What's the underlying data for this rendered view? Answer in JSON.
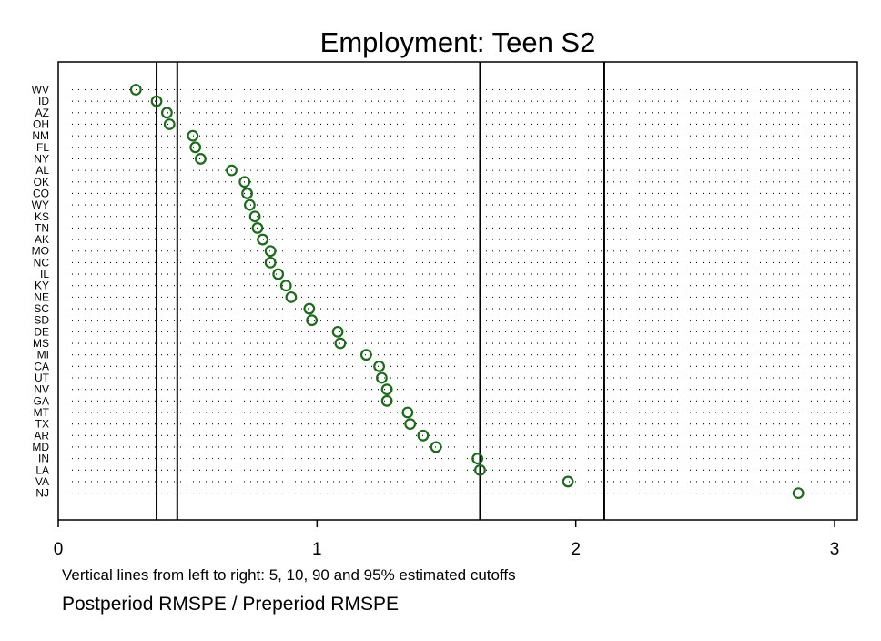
{
  "chart_data": {
    "type": "scatter",
    "title": "Employment: Teen S2",
    "xlabel": "Postperiod RMSPE / Preperiod RMSPE",
    "note": "Vertical lines from left to right: 5, 10, 90 and 95% estimated cutoffs",
    "xlim": [
      0,
      3.08
    ],
    "xticks": [
      0,
      1,
      2,
      3
    ],
    "marker_color": "#1a6b1a",
    "cutoffs": [
      {
        "name": "5%",
        "x": 0.38
      },
      {
        "name": "10%",
        "x": 0.46
      },
      {
        "name": "90%",
        "x": 1.63
      },
      {
        "name": "95%",
        "x": 2.11
      }
    ],
    "points": [
      {
        "state": "WV",
        "x": 0.3
      },
      {
        "state": "ID",
        "x": 0.38
      },
      {
        "state": "AZ",
        "x": 0.42
      },
      {
        "state": "OH",
        "x": 0.43
      },
      {
        "state": "NM",
        "x": 0.52
      },
      {
        "state": "FL",
        "x": 0.53
      },
      {
        "state": "NY",
        "x": 0.55
      },
      {
        "state": "AL",
        "x": 0.67
      },
      {
        "state": "OK",
        "x": 0.72
      },
      {
        "state": "CO",
        "x": 0.73
      },
      {
        "state": "WY",
        "x": 0.74
      },
      {
        "state": "KS",
        "x": 0.76
      },
      {
        "state": "TN",
        "x": 0.77
      },
      {
        "state": "AK",
        "x": 0.79
      },
      {
        "state": "MO",
        "x": 0.82
      },
      {
        "state": "NC",
        "x": 0.82
      },
      {
        "state": "IL",
        "x": 0.85
      },
      {
        "state": "KY",
        "x": 0.88
      },
      {
        "state": "NE",
        "x": 0.9
      },
      {
        "state": "SC",
        "x": 0.97
      },
      {
        "state": "SD",
        "x": 0.98
      },
      {
        "state": "DE",
        "x": 1.08
      },
      {
        "state": "MS",
        "x": 1.09
      },
      {
        "state": "MI",
        "x": 1.19
      },
      {
        "state": "CA",
        "x": 1.24
      },
      {
        "state": "UT",
        "x": 1.25
      },
      {
        "state": "NV",
        "x": 1.27
      },
      {
        "state": "GA",
        "x": 1.27
      },
      {
        "state": "MT",
        "x": 1.35
      },
      {
        "state": "TX",
        "x": 1.36
      },
      {
        "state": "AR",
        "x": 1.41
      },
      {
        "state": "MD",
        "x": 1.46
      },
      {
        "state": "IN",
        "x": 1.62
      },
      {
        "state": "LA",
        "x": 1.63
      },
      {
        "state": "VA",
        "x": 1.97
      },
      {
        "state": "NJ",
        "x": 2.86
      }
    ]
  }
}
